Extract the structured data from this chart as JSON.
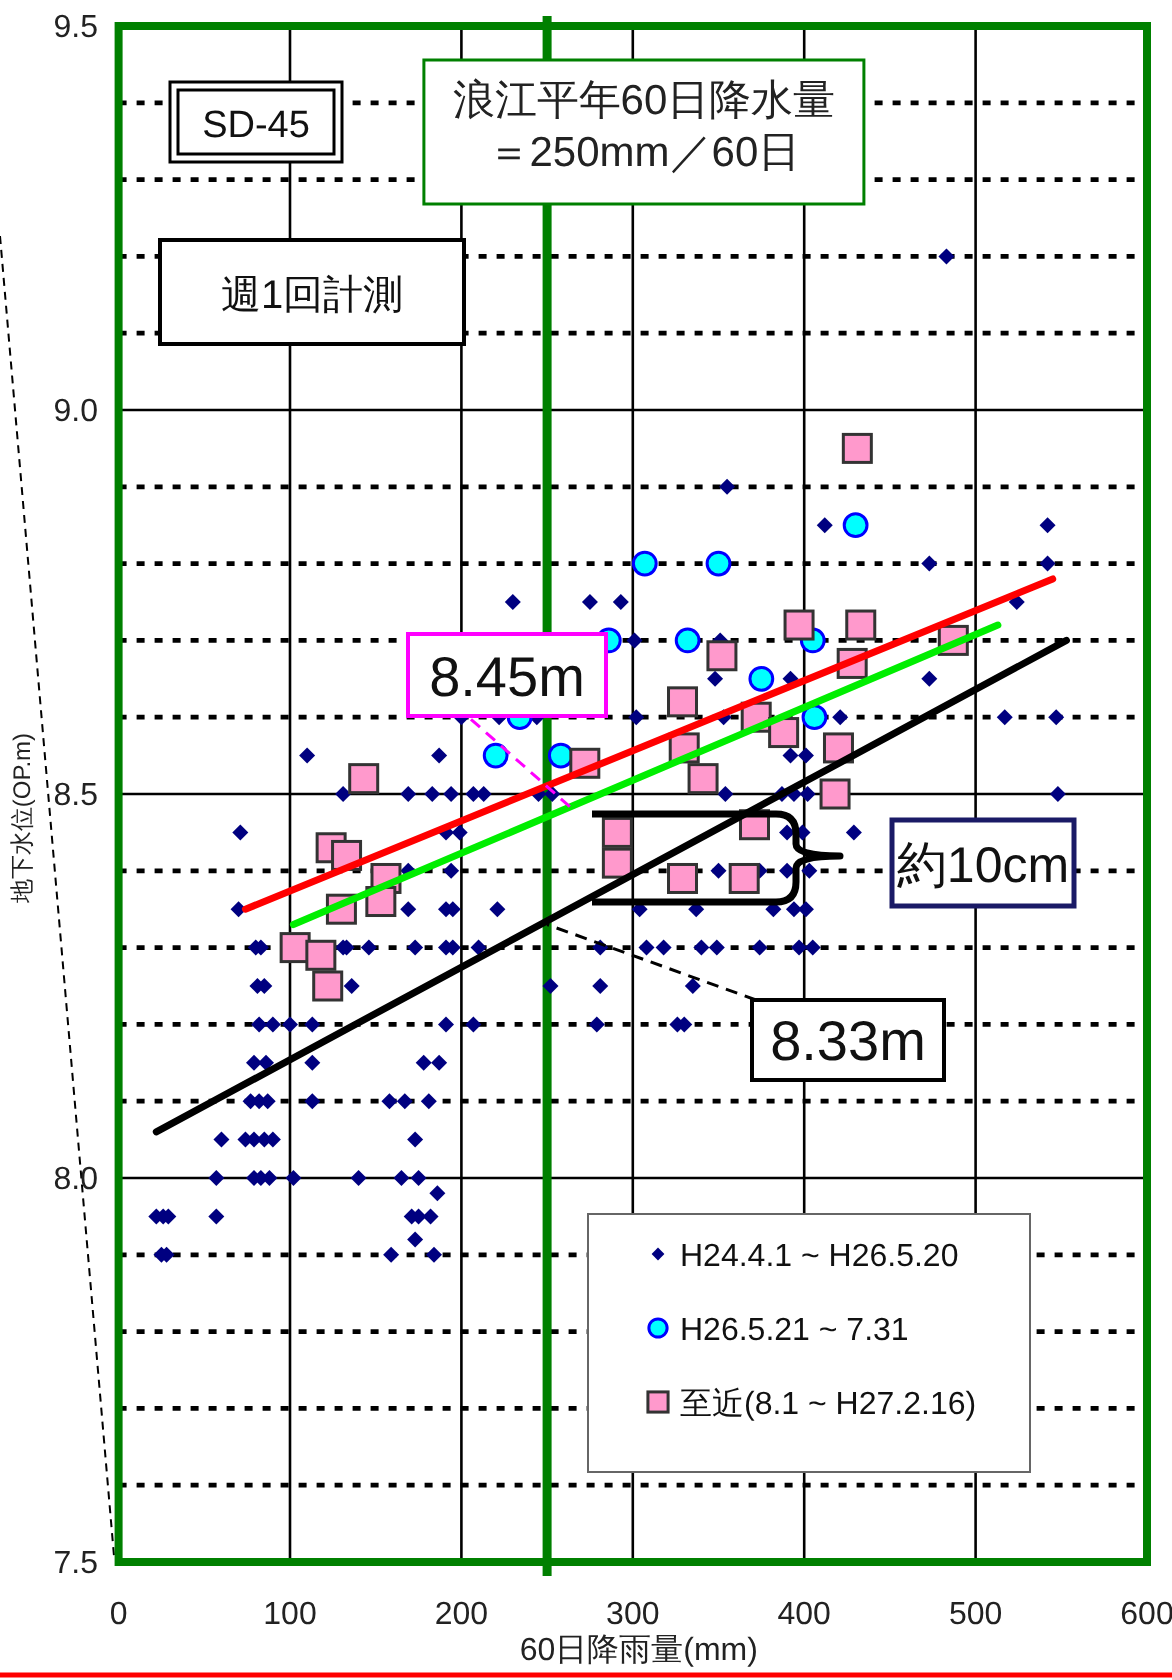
{
  "chart_data": {
    "type": "scatter",
    "xlabel": "60日降雨量(mm)",
    "ylabel": "地下水位(OP.m)",
    "xlim": [
      0,
      600
    ],
    "ylim": [
      7.5,
      9.5
    ],
    "xticks": [
      0,
      100,
      200,
      300,
      400,
      500,
      600
    ],
    "yticks": [
      7.5,
      {
        "value": 7.6,
        "label": null
      },
      {
        "value": 7.7,
        "label": null
      },
      {
        "value": 7.8,
        "label": null
      },
      {
        "value": 7.9,
        "label": null
      },
      {
        "value": 8,
        "label": "8.0"
      },
      {
        "value": 8.1,
        "label": null
      },
      {
        "value": 8.2,
        "label": null
      },
      {
        "value": 8.3,
        "label": null
      },
      {
        "value": 8.4,
        "label": null
      },
      8.5,
      {
        "value": 8.6,
        "label": null
      },
      {
        "value": 8.7,
        "label": null
      },
      {
        "value": 8.8,
        "label": null
      },
      {
        "value": 8.9,
        "label": null
      },
      {
        "value": 9,
        "label": "9.0"
      },
      {
        "value": 9.1,
        "label": null
      },
      {
        "value": 9.2,
        "label": null
      },
      {
        "value": 9.3,
        "label": null
      },
      {
        "value": 9.4,
        "label": null
      },
      9.5
    ],
    "grid": true,
    "legend": "bottom right",
    "series": [
      {
        "name": "H24.4.1 ~ H26.5.20",
        "marker": "diamond",
        "color": "#000080",
        "x": [
          483,
          355,
          412,
          542,
          473,
          542,
          230,
          275,
          293,
          524,
          301,
          351,
          348,
          392,
          473,
          200,
          222,
          244,
          302,
          353,
          421,
          517,
          547,
          110,
          187,
          392,
          401,
          131,
          169,
          183,
          194,
          207,
          213,
          245,
          253,
          354,
          387,
          394,
          402,
          548,
          71,
          191,
          199,
          390,
          399,
          429,
          169,
          194,
          350,
          374,
          390,
          403,
          70,
          169,
          191,
          195,
          221,
          304,
          337,
          382,
          394,
          401,
          80,
          83,
          131,
          133,
          146,
          173,
          191,
          195,
          210,
          281,
          308,
          318,
          340,
          349,
          374,
          397,
          405,
          81,
          85,
          136,
          252,
          281,
          335,
          82,
          90,
          100,
          113,
          191,
          207,
          279,
          326,
          330,
          79,
          86,
          113,
          178,
          187,
          77,
          82,
          87,
          113,
          158,
          167,
          181,
          60,
          74,
          79,
          85,
          90,
          173,
          57,
          79,
          83,
          88,
          102,
          140,
          165,
          175,
          186,
          22,
          26,
          29,
          57,
          171,
          175,
          182,
          173,
          25,
          28,
          159,
          184
        ],
        "values": [
          9.2,
          8.9,
          8.85,
          8.85,
          8.8,
          8.8,
          8.75,
          8.75,
          8.75,
          8.75,
          8.7,
          8.7,
          8.65,
          8.65,
          8.65,
          8.6,
          8.6,
          8.6,
          8.6,
          8.6,
          8.6,
          8.6,
          8.6,
          8.55,
          8.55,
          8.55,
          8.55,
          8.5,
          8.5,
          8.5,
          8.5,
          8.5,
          8.5,
          8.5,
          8.5,
          8.5,
          8.5,
          8.5,
          8.5,
          8.5,
          8.45,
          8.45,
          8.45,
          8.45,
          8.45,
          8.45,
          8.4,
          8.4,
          8.4,
          8.4,
          8.4,
          8.4,
          8.35,
          8.35,
          8.35,
          8.35,
          8.35,
          8.35,
          8.35,
          8.35,
          8.35,
          8.35,
          8.3,
          8.3,
          8.3,
          8.3,
          8.3,
          8.3,
          8.3,
          8.3,
          8.3,
          8.3,
          8.3,
          8.3,
          8.3,
          8.3,
          8.3,
          8.3,
          8.3,
          8.25,
          8.25,
          8.25,
          8.25,
          8.25,
          8.25,
          8.2,
          8.2,
          8.2,
          8.2,
          8.2,
          8.2,
          8.2,
          8.2,
          8.2,
          8.15,
          8.15,
          8.15,
          8.15,
          8.15,
          8.1,
          8.1,
          8.1,
          8.1,
          8.1,
          8.1,
          8.1,
          8.05,
          8.05,
          8.05,
          8.05,
          8.05,
          8.05,
          8,
          8,
          8,
          8,
          8,
          8,
          8,
          8,
          7.98,
          7.95,
          7.95,
          7.95,
          7.95,
          7.95,
          7.95,
          7.95,
          7.92,
          7.9,
          7.9,
          7.9,
          7.9
        ]
      },
      {
        "name": "H26.5.21 ~ 7.31",
        "marker": "circle",
        "color": "#00ffff",
        "x": [
          307,
          350,
          430,
          286,
          332,
          405,
          375,
          234,
          406,
          220,
          258
        ],
        "values": [
          8.8,
          8.8,
          8.85,
          8.7,
          8.7,
          8.7,
          8.65,
          8.6,
          8.6,
          8.55,
          8.55
        ]
      },
      {
        "name": "至近(8.1 ~ H27.2.16)",
        "marker": "square",
        "color": "#ff99cc",
        "x": [
          431,
          397,
          433,
          487,
          428,
          352,
          329,
          372,
          388,
          330,
          420,
          272,
          143,
          341,
          418,
          371,
          291,
          124,
          133,
          291,
          156,
          329,
          365,
          153,
          130,
          103,
          118,
          122
        ],
        "values": [
          8.95,
          8.72,
          8.72,
          8.7,
          8.67,
          8.68,
          8.62,
          8.6,
          8.58,
          8.56,
          8.56,
          8.54,
          8.52,
          8.52,
          8.5,
          8.46,
          8.45,
          8.43,
          8.42,
          8.41,
          8.39,
          8.39,
          8.39,
          8.36,
          8.35,
          8.3,
          8.29,
          8.25
        ]
      },
      {
        "type": "line",
        "color": "#ff0000",
        "x": [
          74,
          545
        ],
        "values": [
          8.35,
          8.78
        ]
      },
      {
        "type": "line",
        "color": "#00ee00",
        "x": [
          102,
          513
        ],
        "values": [
          8.33,
          8.72
        ]
      },
      {
        "type": "line",
        "color": "#000000",
        "x": [
          22,
          553
        ],
        "values": [
          8.06,
          8.7
        ]
      }
    ],
    "ref_lines": [
      {
        "axis": "x",
        "value": 250,
        "label": "浪江平年60日降水量＝250mm／60日",
        "color": "#008000"
      }
    ],
    "annotations": [
      "SD-45",
      "週1回計測",
      {
        "text": "8.45m",
        "x": 265,
        "y": 8.48
      },
      {
        "text": "8.33m",
        "x": 250,
        "y": 8.33
      },
      "約10cm"
    ]
  }
}
